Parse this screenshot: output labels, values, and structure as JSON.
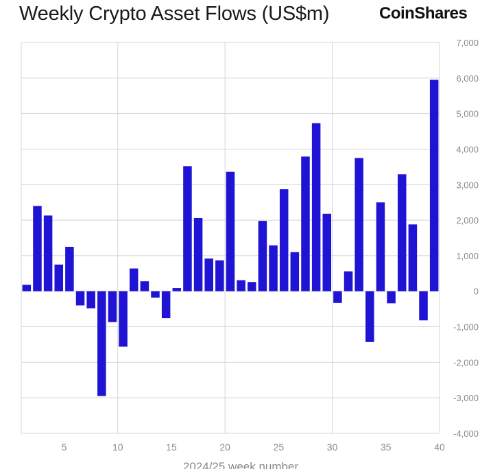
{
  "header": {
    "title": "Weekly Crypto Asset Flows (US$m)",
    "logo_text": "CoinShares"
  },
  "chart_data": {
    "type": "bar",
    "title": "Weekly Crypto Asset Flows (US$m)",
    "xlabel": "2024/25 week number",
    "ylabel": "",
    "x": [
      1,
      2,
      3,
      4,
      5,
      6,
      7,
      8,
      9,
      10,
      11,
      12,
      13,
      14,
      15,
      16,
      17,
      18,
      19,
      20,
      21,
      22,
      23,
      24,
      25,
      26,
      27,
      28,
      29,
      30,
      31,
      32,
      33,
      34,
      35,
      36,
      37,
      38,
      39
    ],
    "values": [
      180,
      2400,
      2130,
      750,
      1250,
      -400,
      -480,
      -2950,
      -870,
      -1560,
      640,
      280,
      -180,
      -760,
      90,
      3520,
      2060,
      920,
      870,
      3360,
      310,
      260,
      1980,
      1290,
      2870,
      1100,
      3790,
      4730,
      2180,
      -330,
      560,
      3750,
      -1430,
      2500,
      -340,
      3290,
      1880,
      -820,
      5950
    ],
    "xlim": [
      1,
      40
    ],
    "ylim": [
      -4000,
      7000
    ],
    "x_ticks": [
      5,
      10,
      15,
      20,
      25,
      30,
      35,
      40
    ],
    "x_tick_labels": [
      "5",
      "10",
      "15",
      "20",
      "25",
      "30",
      "35",
      "40"
    ],
    "y_ticks": [
      -4000,
      -3000,
      -2000,
      -1000,
      0,
      1000,
      2000,
      3000,
      4000,
      5000,
      6000,
      7000
    ],
    "y_tick_labels": [
      "-4,000",
      "-3,000",
      "-2,000",
      "-1,000",
      "0",
      "1,000",
      "2,000",
      "3,000",
      "4,000",
      "5,000",
      "6,000",
      "7,000"
    ],
    "y_axis_side": "right",
    "grid": true,
    "legend": "none",
    "bar_color": "#1f14d4",
    "grid_color": "#d4d4d4"
  }
}
